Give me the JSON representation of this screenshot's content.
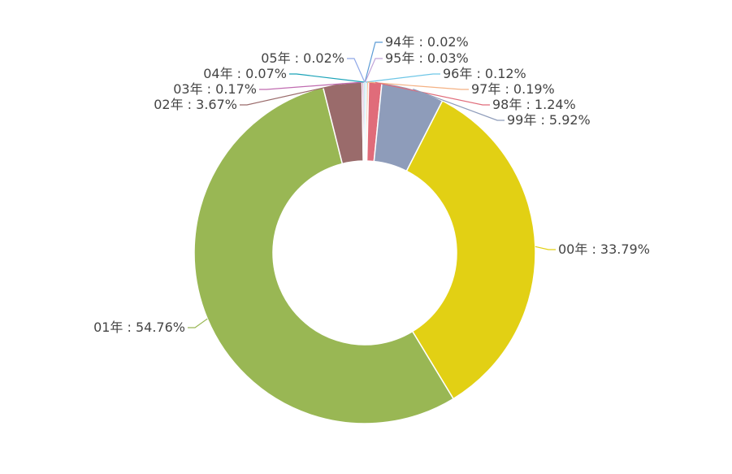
{
  "chart_data": {
    "type": "pie",
    "donut": true,
    "categories": [
      "94年",
      "95年",
      "96年",
      "97年",
      "98年",
      "99年",
      "00年",
      "01年",
      "02年",
      "03年",
      "04年",
      "05年"
    ],
    "values": [
      0.02,
      0.03,
      0.12,
      0.19,
      1.24,
      5.92,
      33.79,
      54.76,
      3.67,
      0.17,
      0.07,
      0.02
    ],
    "labels": [
      "94年 : 0.02%",
      "95年 : 0.03%",
      "96年 : 0.12%",
      "97年 : 0.19%",
      "98年 : 1.24%",
      "99年 : 5.92%",
      "00年 : 33.79%",
      "01年 : 54.76%",
      "02年 : 3.67%",
      "03年 : 0.17%",
      "04年 : 0.07%",
      "05年 : 0.02%"
    ],
    "colors": [
      "#5b9bd5",
      "#c1a5d9",
      "#6ec6e6",
      "#f4b183",
      "#e06c7a",
      "#8e9cba",
      "#e2d014",
      "#99b754",
      "#9a6b6b",
      "#c06bb0",
      "#1aa3b8",
      "#8fa8e8"
    ],
    "legend": "none"
  }
}
